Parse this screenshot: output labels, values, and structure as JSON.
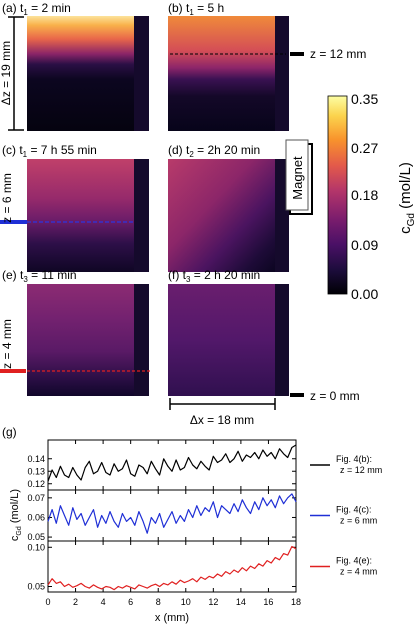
{
  "panels": [
    {
      "label": "(a) t",
      "sub": "1",
      "suffix": " = 2 min",
      "profile": "gradientA"
    },
    {
      "label": "(b) t",
      "sub": "1",
      "suffix": " = 5 h",
      "profile": "gradientB"
    },
    {
      "label": "(c) t",
      "sub": "1",
      "suffix": " = 7 h 55 min",
      "profile": "gradientC"
    },
    {
      "label": "(d) t",
      "sub": "2",
      "suffix": " = 2h 20 min",
      "profile": "gradientD"
    },
    {
      "label": "(e) t",
      "sub": "3",
      "suffix": " = 11 min",
      "profile": "gradientE"
    },
    {
      "label": "(f) t",
      "sub": "3",
      "suffix": " = 2 h 20 min",
      "profile": "gradientF"
    }
  ],
  "annotations": {
    "dz": "Δz = 19 mm",
    "z12": "z = 12 mm",
    "z6": "z = 6 mm",
    "z4": "z = 4 mm",
    "z0": "z = 0 mm",
    "dx": "Δx = 18 mm",
    "magnet": "Magnet",
    "panel_g": "(g)"
  },
  "colors": {
    "black_line": "#000000",
    "blue_line": "#1f2fd6",
    "red_line": "#e02020",
    "colormap": [
      "#000004",
      "#1c0c3b",
      "#4a1066",
      "#7b1d6d",
      "#b3356a",
      "#e35a4a",
      "#f8932c",
      "#fbd34d",
      "#fcfea4"
    ]
  },
  "colorbar": {
    "label": "c",
    "label_sub": "Gd",
    "label_unit": " (mol/L)",
    "ticks": [
      "0.35",
      "0.27",
      "0.18",
      "0.09",
      "0.00"
    ]
  },
  "chart_data": {
    "type": "line",
    "xlabel": "x (mm)",
    "ylabel": "c",
    "ylabel_sub": "Gd",
    "ylabel_unit": " (mol/L)",
    "xlim": [
      0,
      18
    ],
    "x_ticks": [
      "0",
      "2",
      "4",
      "6",
      "8",
      "10",
      "12",
      "14",
      "16",
      "18"
    ],
    "series": [
      {
        "legend_1": "Fig. 4(b):",
        "legend_2": "z = 12 mm",
        "ylim": [
          0.115,
          0.155
        ],
        "y_ticks": [
          0.12,
          0.13,
          0.14
        ],
        "y_tick_labels": [
          "0.12",
          "0.13",
          "0.14"
        ],
        "x": [
          0,
          0.3,
          0.6,
          0.9,
          1.2,
          1.5,
          1.8,
          2.1,
          2.4,
          2.7,
          3.0,
          3.3,
          3.6,
          3.9,
          4.2,
          4.5,
          4.8,
          5.1,
          5.4,
          5.7,
          6.0,
          6.3,
          6.6,
          6.9,
          7.2,
          7.5,
          7.8,
          8.1,
          8.4,
          8.7,
          9.0,
          9.3,
          9.6,
          9.9,
          10.2,
          10.5,
          10.8,
          11.1,
          11.4,
          11.7,
          12.0,
          12.3,
          12.6,
          12.9,
          13.2,
          13.5,
          13.8,
          14.1,
          14.4,
          14.7,
          15.0,
          15.3,
          15.6,
          15.9,
          16.2,
          16.5,
          16.8,
          17.1,
          17.4,
          17.7,
          18.0
        ],
        "y": [
          0.122,
          0.131,
          0.125,
          0.134,
          0.127,
          0.125,
          0.133,
          0.127,
          0.123,
          0.133,
          0.138,
          0.128,
          0.13,
          0.137,
          0.129,
          0.127,
          0.136,
          0.13,
          0.132,
          0.139,
          0.128,
          0.126,
          0.135,
          0.133,
          0.128,
          0.138,
          0.132,
          0.127,
          0.14,
          0.134,
          0.13,
          0.139,
          0.131,
          0.133,
          0.141,
          0.135,
          0.132,
          0.138,
          0.134,
          0.131,
          0.142,
          0.137,
          0.139,
          0.144,
          0.137,
          0.14,
          0.146,
          0.138,
          0.143,
          0.141,
          0.145,
          0.14,
          0.147,
          0.142,
          0.145,
          0.14,
          0.148,
          0.144,
          0.141,
          0.149,
          0.151
        ]
      },
      {
        "legend_1": "Fig. 4(c):",
        "legend_2": "z =  6 mm",
        "ylim": [
          0.048,
          0.074
        ],
        "y_ticks": [
          0.05,
          0.06,
          0.07
        ],
        "y_tick_labels": [
          "0.05",
          "0.06",
          "0.07"
        ],
        "x": [
          0,
          0.3,
          0.6,
          0.9,
          1.2,
          1.5,
          1.8,
          2.1,
          2.4,
          2.7,
          3.0,
          3.3,
          3.6,
          3.9,
          4.2,
          4.5,
          4.8,
          5.1,
          5.4,
          5.7,
          6.0,
          6.3,
          6.6,
          6.9,
          7.2,
          7.5,
          7.8,
          8.1,
          8.4,
          8.7,
          9.0,
          9.3,
          9.6,
          9.9,
          10.2,
          10.5,
          10.8,
          11.1,
          11.4,
          11.7,
          12.0,
          12.3,
          12.6,
          12.9,
          13.2,
          13.5,
          13.8,
          14.1,
          14.4,
          14.7,
          15.0,
          15.3,
          15.6,
          15.9,
          16.2,
          16.5,
          16.8,
          17.1,
          17.4,
          17.7,
          18.0
        ],
        "y": [
          0.058,
          0.064,
          0.057,
          0.066,
          0.061,
          0.056,
          0.065,
          0.059,
          0.062,
          0.056,
          0.06,
          0.064,
          0.055,
          0.061,
          0.057,
          0.063,
          0.058,
          0.055,
          0.062,
          0.058,
          0.06,
          0.056,
          0.063,
          0.058,
          0.052,
          0.06,
          0.057,
          0.062,
          0.055,
          0.059,
          0.063,
          0.057,
          0.061,
          0.058,
          0.064,
          0.06,
          0.066,
          0.061,
          0.065,
          0.063,
          0.068,
          0.06,
          0.066,
          0.064,
          0.062,
          0.067,
          0.063,
          0.069,
          0.065,
          0.062,
          0.068,
          0.064,
          0.07,
          0.066,
          0.069,
          0.065,
          0.071,
          0.067,
          0.07,
          0.072,
          0.068
        ]
      },
      {
        "legend_1": "Fig. 4(e):",
        "legend_2": "z = 4 mm",
        "ylim": [
          0.043,
          0.108
        ],
        "y_ticks": [
          0.05,
          0.1
        ],
        "y_tick_labels": [
          "0.05",
          "0.10"
        ],
        "x": [
          0,
          0.3,
          0.6,
          0.9,
          1.2,
          1.5,
          1.8,
          2.1,
          2.4,
          2.7,
          3.0,
          3.3,
          3.6,
          3.9,
          4.2,
          4.5,
          4.8,
          5.1,
          5.4,
          5.7,
          6.0,
          6.3,
          6.6,
          6.9,
          7.2,
          7.5,
          7.8,
          8.1,
          8.4,
          8.7,
          9.0,
          9.3,
          9.6,
          9.9,
          10.2,
          10.5,
          10.8,
          11.1,
          11.4,
          11.7,
          12.0,
          12.3,
          12.6,
          12.9,
          13.2,
          13.5,
          13.8,
          14.1,
          14.4,
          14.7,
          15.0,
          15.3,
          15.6,
          15.9,
          16.2,
          16.5,
          16.8,
          17.1,
          17.4,
          17.7,
          18.0
        ],
        "y": [
          0.052,
          0.06,
          0.054,
          0.056,
          0.05,
          0.053,
          0.049,
          0.051,
          0.054,
          0.05,
          0.048,
          0.052,
          0.049,
          0.047,
          0.05,
          0.049,
          0.046,
          0.05,
          0.048,
          0.051,
          0.049,
          0.047,
          0.052,
          0.05,
          0.048,
          0.051,
          0.053,
          0.05,
          0.054,
          0.052,
          0.056,
          0.053,
          0.058,
          0.055,
          0.057,
          0.06,
          0.056,
          0.062,
          0.059,
          0.063,
          0.061,
          0.066,
          0.063,
          0.069,
          0.066,
          0.071,
          0.068,
          0.074,
          0.07,
          0.076,
          0.073,
          0.079,
          0.076,
          0.083,
          0.08,
          0.087,
          0.084,
          0.092,
          0.09,
          0.101,
          0.098
        ]
      }
    ]
  }
}
